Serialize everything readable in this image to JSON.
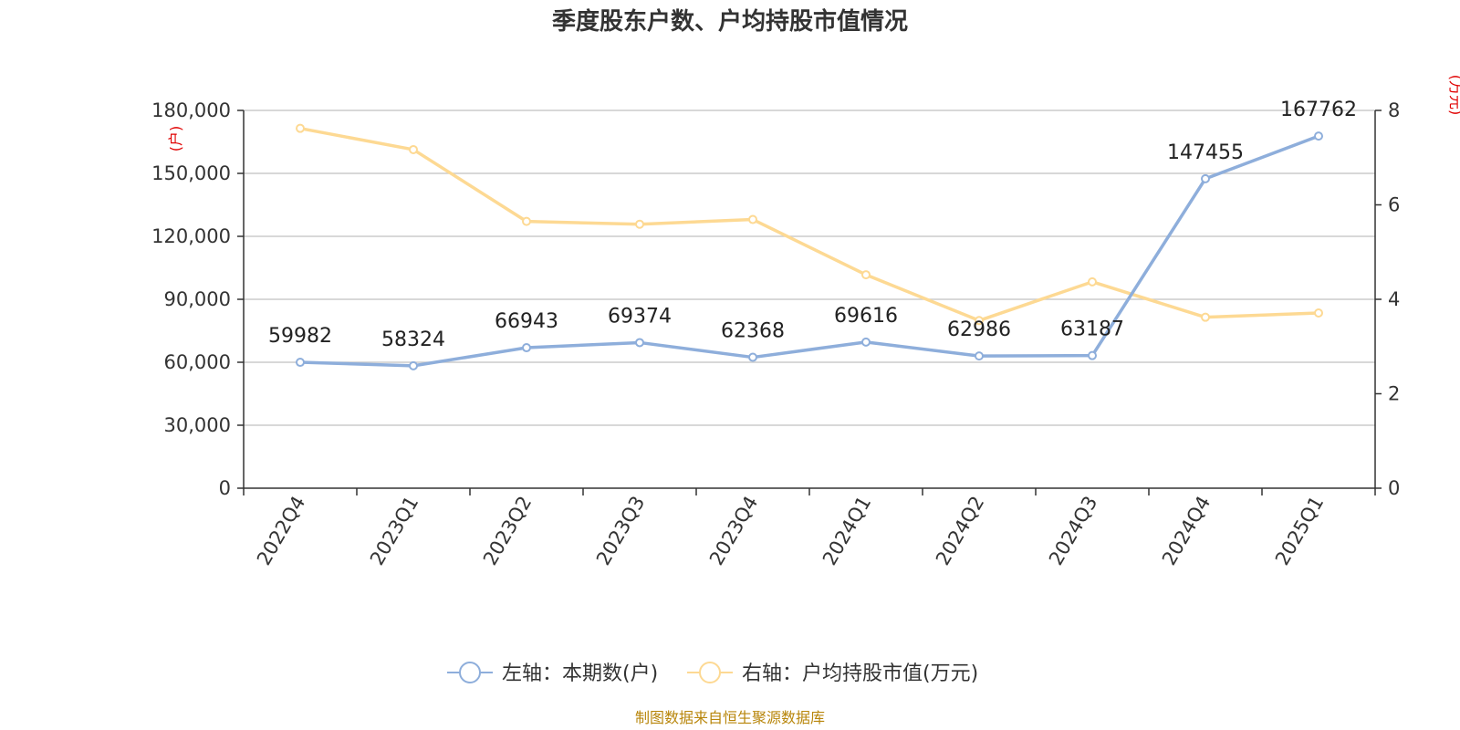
{
  "chart_data": {
    "type": "line",
    "title": "季度股东户数、户均持股市值情况",
    "categories": [
      "2022Q4",
      "2023Q1",
      "2023Q2",
      "2023Q3",
      "2023Q4",
      "2024Q1",
      "2024Q2",
      "2024Q3",
      "2024Q4",
      "2025Q1"
    ],
    "left_axis": {
      "unit_label": "(户)",
      "ylim": [
        0,
        180000
      ],
      "ticks": [
        "0",
        "30,000",
        "60,000",
        "90,000",
        "120,000",
        "150,000",
        "180,000"
      ],
      "tick_values": [
        0,
        30000,
        60000,
        90000,
        120000,
        150000,
        180000
      ]
    },
    "right_axis": {
      "unit_label": "(万元)",
      "ylim": [
        0,
        8
      ],
      "ticks": [
        "0",
        "2",
        "4",
        "6",
        "8"
      ],
      "tick_values": [
        0,
        2,
        4,
        6,
        8
      ]
    },
    "series": [
      {
        "name": "左轴：本期数(户)",
        "axis": "left",
        "color": "#8eaedb",
        "values": [
          59982,
          58324,
          66943,
          69374,
          62368,
          69616,
          62986,
          63187,
          147455,
          167762
        ],
        "labels": [
          "59982",
          "58324",
          "66943",
          "69374",
          "62368",
          "69616",
          "62986",
          "63187",
          "147455",
          "167762"
        ]
      },
      {
        "name": "右轴：户均持股市值(万元)",
        "axis": "right",
        "color": "#fdd993",
        "values": [
          7.62,
          7.17,
          5.65,
          5.59,
          5.69,
          4.52,
          3.55,
          4.37,
          3.62,
          3.71
        ]
      }
    ],
    "grid": true,
    "legend_position": "bottom-center"
  },
  "source": "制图数据来自恒生聚源数据库",
  "colors": {
    "grid": "#cccccc",
    "axis": "#333333",
    "unit_label": "#e00000",
    "source": "#b8860b"
  }
}
